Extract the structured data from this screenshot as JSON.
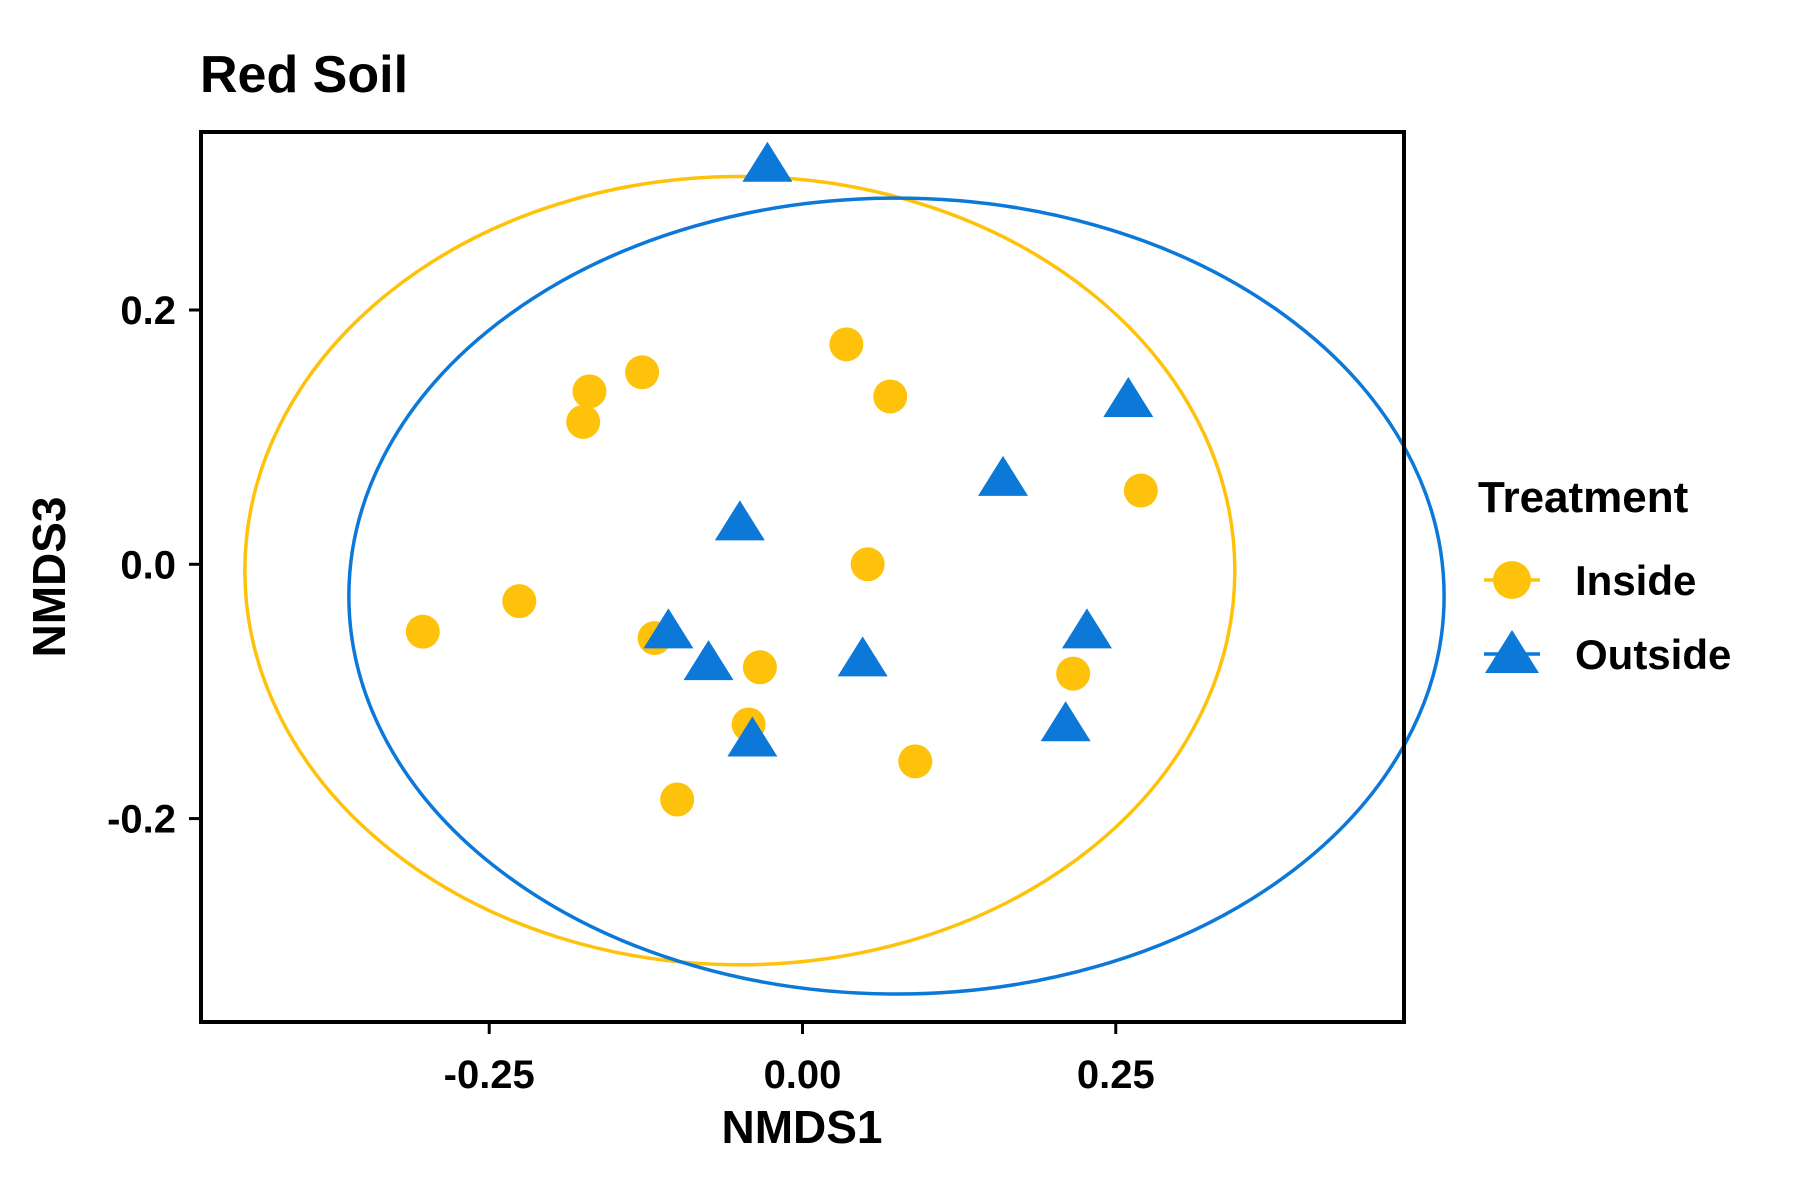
{
  "chart_data": {
    "type": "scatter",
    "title": "Red Soil",
    "xlabel": "NMDS1",
    "ylabel": "NMDS3",
    "xlim": [
      -0.48,
      0.48
    ],
    "ylim": [
      -0.36,
      0.34
    ],
    "x_ticks": [
      -0.25,
      0.0,
      0.25
    ],
    "x_tick_labels": [
      "-0.25",
      "0.00",
      "0.25"
    ],
    "y_ticks": [
      -0.2,
      0.0,
      0.2
    ],
    "y_tick_labels": [
      "-0.2",
      "0.0",
      "0.2"
    ],
    "grid": false,
    "legend_title": "Treatment",
    "legend_position": "right",
    "series": [
      {
        "name": "Inside",
        "marker": "circle",
        "color": "#FFC20A",
        "ellipse": {
          "cx": -0.05,
          "cy": -0.005,
          "rx": 0.395,
          "ry": 0.31
        },
        "x": [
          0.035,
          0.07,
          -0.128,
          -0.17,
          -0.175,
          0.27,
          0.052,
          -0.226,
          -0.303,
          -0.118,
          -0.034,
          0.216,
          -0.043,
          0.09,
          -0.1
        ],
        "y": [
          0.173,
          0.132,
          0.151,
          0.136,
          0.112,
          0.058,
          0.0,
          -0.029,
          -0.053,
          -0.058,
          -0.081,
          -0.086,
          -0.126,
          -0.155,
          -0.185
        ]
      },
      {
        "name": "Outside",
        "marker": "triangle",
        "color": "#0C78D8",
        "ellipse": {
          "cx": 0.075,
          "cy": -0.025,
          "rx": 0.437,
          "ry": 0.313
        },
        "x": [
          -0.028,
          0.26,
          0.16,
          -0.05,
          -0.107,
          -0.075,
          0.048,
          0.227,
          0.21,
          -0.04
        ],
        "y": [
          0.315,
          0.13,
          0.068,
          0.033,
          -0.052,
          -0.077,
          -0.074,
          -0.052,
          -0.125,
          -0.137
        ]
      }
    ]
  }
}
